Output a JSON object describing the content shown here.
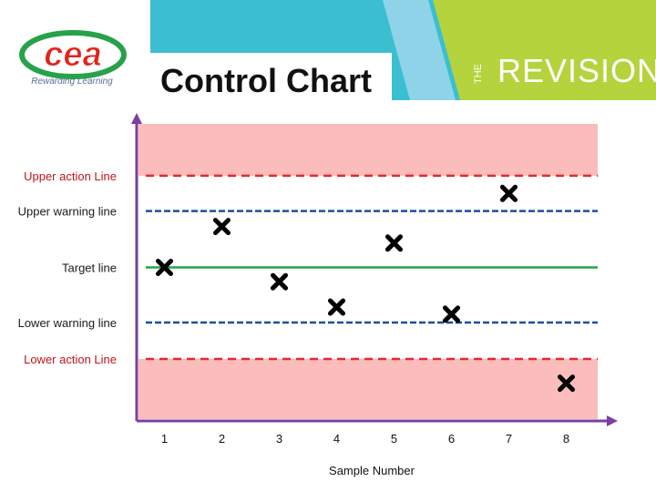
{
  "header": {
    "logo_text": "cea",
    "logo_tagline": "Rewarding Learning",
    "brand_the": "THE",
    "brand_name": "REVISION",
    "colors": {
      "cyan": "#3bbfd0",
      "light_blue": "#8fd3e8",
      "lime": "#b5d33c"
    }
  },
  "chart_data": {
    "type": "scatter",
    "title": "Control Chart",
    "xlabel": "Sample Number",
    "ylabel": "",
    "categories": [
      "1",
      "2",
      "3",
      "4",
      "5",
      "6",
      "7",
      "8"
    ],
    "x": [
      1,
      2,
      3,
      4,
      5,
      6,
      7,
      8
    ],
    "values": [
      0,
      0.74,
      -0.26,
      -0.72,
      0.44,
      -0.85,
      1.34,
      -2.1
    ],
    "marker": "x",
    "marker_color": "#000000",
    "reference_lines": [
      {
        "label": "Upper action Line",
        "value": 1.66,
        "color": "#e8272f",
        "style": "dashed"
      },
      {
        "label": "Upper warning line",
        "value": 1.02,
        "color": "#1f4e9c",
        "style": "dashed"
      },
      {
        "label": "Target line",
        "value": 0,
        "color": "#1fa54a",
        "style": "solid"
      },
      {
        "label": "Lower warning line",
        "value": -1.0,
        "color": "#1f4e9c",
        "style": "dashed"
      },
      {
        "label": "Lower action Line",
        "value": -1.66,
        "color": "#e8272f",
        "style": "dashed"
      }
    ],
    "action_zone_color": "#fbbcbc",
    "axis_color": "#7a3fa0",
    "ylim": [
      -2.75,
      2.6
    ],
    "xlim": [
      0.5,
      8.5
    ],
    "grid": false,
    "legend": "none"
  }
}
